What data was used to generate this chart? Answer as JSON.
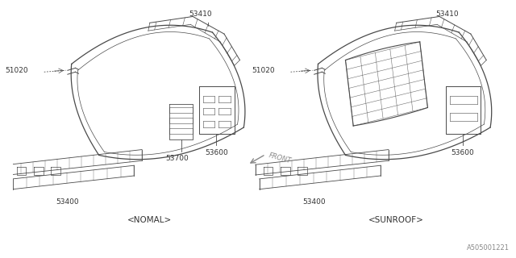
{
  "bg_color": "#ffffff",
  "line_color": "#4a4a4a",
  "text_color": "#333333",
  "fig_width": 6.4,
  "fig_height": 3.2,
  "dpi": 100,
  "watermark": "A505001221",
  "left_title": "<NOMAL>",
  "right_title": "<SUNROOF>",
  "front_label": "FRONT"
}
